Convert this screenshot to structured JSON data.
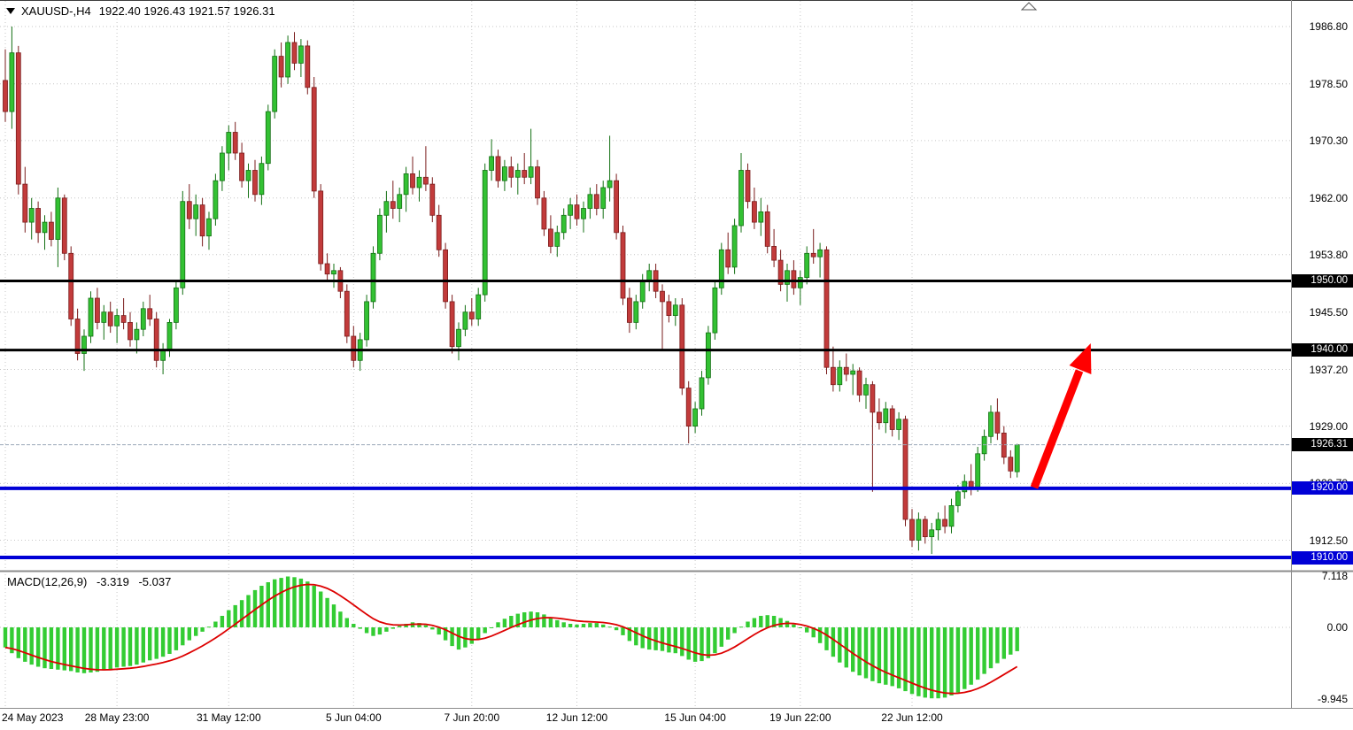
{
  "window": {
    "title_symbol": "XAUUSD-,H4",
    "title_ohlc": "1922.40 1926.43 1921.57 1926.31"
  },
  "colors": {
    "bull": "#33C133",
    "bull_stroke": "#137013",
    "bear": "#C23B3B",
    "bear_stroke": "#7A1C1C",
    "macd_bar": "#33CC33",
    "signal": "#DD0000",
    "level_black": "#000000",
    "level_blue": "#0000D6",
    "grid": "#C6C6C6",
    "bid_line": "#9AA7B8",
    "arrow": "#FF0000"
  },
  "price_axis": {
    "ticks": [
      {
        "value": 1986.8,
        "label": "1986.80"
      },
      {
        "value": 1978.5,
        "label": "1978.50"
      },
      {
        "value": 1970.3,
        "label": "1970.30"
      },
      {
        "value": 1962.0,
        "label": "1962.00"
      },
      {
        "value": 1953.8,
        "label": "1953.80"
      },
      {
        "value": 1945.5,
        "label": "1945.50"
      },
      {
        "value": 1937.2,
        "label": "1937.20"
      },
      {
        "value": 1929.0,
        "label": "1929.00"
      },
      {
        "value": 1920.7,
        "label": "1920.70"
      },
      {
        "value": 1912.5,
        "label": "1912.50"
      }
    ]
  },
  "x_axis": {
    "ticks": [
      {
        "i": 0,
        "label": "24 May 2023"
      },
      {
        "i": 17,
        "label": "28 May 23:00"
      },
      {
        "i": 34,
        "label": "31 May 12:00"
      },
      {
        "i": 53,
        "label": "5 Jun 04:00"
      },
      {
        "i": 71,
        "label": "7 Jun 20:00"
      },
      {
        "i": 87,
        "label": "12 Jun 12:00"
      },
      {
        "i": 105,
        "label": "15 Jun 04:00"
      },
      {
        "i": 121,
        "label": "19 Jun 22:00"
      },
      {
        "i": 138,
        "label": "22 Jun 12:00"
      }
    ]
  },
  "levels": [
    {
      "value": 1950.0,
      "label": "1950.00",
      "color": "black"
    },
    {
      "value": 1940.0,
      "label": "1940.00",
      "color": "black"
    },
    {
      "value": 1920.0,
      "label": "1920.00",
      "color": "blue"
    },
    {
      "value": 1910.0,
      "label": "1910.00",
      "color": "blue"
    }
  ],
  "bid": {
    "value": 1926.31,
    "label": "1926.31"
  },
  "macd": {
    "label": "MACD(12,26,9)",
    "main": "-3.319",
    "signal": "-5.037",
    "axis": [
      {
        "value": 7.118,
        "label": "7.118"
      },
      {
        "value": 0.0,
        "label": "0.00"
      },
      {
        "value": -9.945,
        "label": "-9.945"
      }
    ]
  },
  "chart_data": {
    "type": "candlestick",
    "symbol": "XAUUSD",
    "timeframe": "H4",
    "title": "XAUUSD-,H4",
    "ylim": [
      1908.0,
      1990.6
    ],
    "last_candle": {
      "open": 1922.4,
      "high": 1926.43,
      "low": 1921.57,
      "close": 1926.31
    },
    "horizontal_levels": [
      1950.0,
      1940.0,
      1920.0,
      1910.0
    ],
    "candles": [
      [
        1979.0,
        1983.5,
        1973.0,
        1974.5
      ],
      [
        1974.5,
        1986.8,
        1972.0,
        1983.0
      ],
      [
        1983.0,
        1984.0,
        1962.5,
        1964.0
      ],
      [
        1964.0,
        1966.5,
        1957.0,
        1958.5
      ],
      [
        1958.5,
        1962.0,
        1956.0,
        1960.5
      ],
      [
        1960.5,
        1961.5,
        1955.5,
        1957.0
      ],
      [
        1957.0,
        1959.5,
        1954.5,
        1958.5
      ],
      [
        1958.5,
        1960.0,
        1955.0,
        1956.0
      ],
      [
        1956.0,
        1963.5,
        1952.0,
        1962.0
      ],
      [
        1962.0,
        1962.5,
        1953.0,
        1954.0
      ],
      [
        1954.0,
        1955.0,
        1943.5,
        1944.5
      ],
      [
        1944.5,
        1946.0,
        1938.5,
        1939.5
      ],
      [
        1939.5,
        1943.0,
        1937.0,
        1942.0
      ],
      [
        1942.0,
        1948.5,
        1941.0,
        1947.5
      ],
      [
        1947.5,
        1949.0,
        1943.0,
        1944.0
      ],
      [
        1944.0,
        1946.5,
        1941.5,
        1945.5
      ],
      [
        1945.5,
        1947.0,
        1942.5,
        1943.5
      ],
      [
        1943.5,
        1946.0,
        1941.0,
        1945.0
      ],
      [
        1945.0,
        1947.5,
        1943.0,
        1944.0
      ],
      [
        1944.0,
        1945.5,
        1940.5,
        1941.5
      ],
      [
        1941.5,
        1944.0,
        1939.5,
        1943.0
      ],
      [
        1943.0,
        1947.0,
        1942.0,
        1946.0
      ],
      [
        1946.0,
        1948.0,
        1943.5,
        1944.5
      ],
      [
        1944.5,
        1945.5,
        1937.5,
        1938.5
      ],
      [
        1938.5,
        1941.0,
        1936.5,
        1940.0
      ],
      [
        1940.0,
        1944.5,
        1939.0,
        1944.0
      ],
      [
        1944.0,
        1950.0,
        1943.0,
        1949.0
      ],
      [
        1949.0,
        1963.0,
        1948.0,
        1961.5
      ],
      [
        1961.5,
        1964.0,
        1957.5,
        1959.0
      ],
      [
        1959.0,
        1962.5,
        1956.5,
        1961.0
      ],
      [
        1961.0,
        1962.0,
        1955.0,
        1956.5
      ],
      [
        1956.5,
        1960.0,
        1954.5,
        1959.0
      ],
      [
        1959.0,
        1965.5,
        1958.0,
        1964.5
      ],
      [
        1964.5,
        1969.5,
        1963.0,
        1968.5
      ],
      [
        1968.5,
        1972.5,
        1966.0,
        1971.5
      ],
      [
        1971.5,
        1973.0,
        1967.5,
        1968.5
      ],
      [
        1968.5,
        1970.0,
        1963.5,
        1964.5
      ],
      [
        1964.5,
        1967.0,
        1962.0,
        1966.0
      ],
      [
        1966.0,
        1967.5,
        1961.5,
        1962.5
      ],
      [
        1962.5,
        1968.0,
        1961.0,
        1967.0
      ],
      [
        1967.0,
        1975.5,
        1966.0,
        1974.5
      ],
      [
        1974.5,
        1983.5,
        1973.5,
        1982.5
      ],
      [
        1982.5,
        1984.5,
        1978.0,
        1979.5
      ],
      [
        1979.5,
        1985.5,
        1978.5,
        1984.5
      ],
      [
        1984.5,
        1986.0,
        1980.5,
        1981.5
      ],
      [
        1981.5,
        1985.0,
        1979.5,
        1984.0
      ],
      [
        1984.0,
        1984.8,
        1977.0,
        1978.0
      ],
      [
        1978.0,
        1979.5,
        1962.0,
        1963.0
      ],
      [
        1963.0,
        1964.0,
        1951.5,
        1952.5
      ],
      [
        1952.5,
        1954.0,
        1950.0,
        1951.0
      ],
      [
        1951.0,
        1952.5,
        1949.0,
        1951.5
      ],
      [
        1951.5,
        1952.0,
        1947.5,
        1948.5
      ],
      [
        1948.5,
        1949.5,
        1941.0,
        1942.0
      ],
      [
        1942.0,
        1943.5,
        1937.5,
        1938.5
      ],
      [
        1938.5,
        1942.5,
        1937.0,
        1941.5
      ],
      [
        1941.5,
        1948.0,
        1940.5,
        1947.0
      ],
      [
        1947.0,
        1955.0,
        1946.0,
        1954.0
      ],
      [
        1954.0,
        1960.5,
        1953.0,
        1959.5
      ],
      [
        1959.5,
        1963.0,
        1957.0,
        1961.5
      ],
      [
        1961.5,
        1964.5,
        1959.0,
        1960.5
      ],
      [
        1960.5,
        1963.5,
        1958.5,
        1962.5
      ],
      [
        1962.5,
        1966.5,
        1960.0,
        1965.5
      ],
      [
        1965.5,
        1968.0,
        1962.5,
        1963.5
      ],
      [
        1963.5,
        1966.0,
        1961.5,
        1965.0
      ],
      [
        1965.0,
        1969.5,
        1963.0,
        1964.0
      ],
      [
        1964.0,
        1965.0,
        1958.5,
        1959.5
      ],
      [
        1959.5,
        1961.0,
        1953.5,
        1954.5
      ],
      [
        1954.5,
        1955.5,
        1946.0,
        1947.0
      ],
      [
        1947.0,
        1948.0,
        1939.5,
        1940.5
      ],
      [
        1940.5,
        1944.0,
        1938.5,
        1943.0
      ],
      [
        1943.0,
        1946.5,
        1942.0,
        1945.5
      ],
      [
        1945.5,
        1947.5,
        1943.5,
        1944.5
      ],
      [
        1944.5,
        1949.0,
        1943.5,
        1948.0
      ],
      [
        1948.0,
        1967.0,
        1947.0,
        1966.0
      ],
      [
        1966.0,
        1970.5,
        1964.5,
        1968.0
      ],
      [
        1968.0,
        1969.0,
        1963.5,
        1964.5
      ],
      [
        1964.5,
        1967.5,
        1963.0,
        1966.5
      ],
      [
        1966.5,
        1968.0,
        1963.5,
        1965.0
      ],
      [
        1965.0,
        1967.0,
        1962.5,
        1966.0
      ],
      [
        1966.0,
        1968.5,
        1964.0,
        1965.0
      ],
      [
        1965.0,
        1972.0,
        1964.0,
        1966.5
      ],
      [
        1966.5,
        1967.5,
        1961.0,
        1962.0
      ],
      [
        1962.0,
        1963.0,
        1956.5,
        1957.5
      ],
      [
        1957.5,
        1959.5,
        1954.0,
        1955.0
      ],
      [
        1955.0,
        1958.0,
        1953.5,
        1957.0
      ],
      [
        1957.0,
        1960.5,
        1956.0,
        1959.5
      ],
      [
        1959.5,
        1962.0,
        1957.5,
        1961.0
      ],
      [
        1961.0,
        1962.5,
        1958.0,
        1959.0
      ],
      [
        1959.0,
        1961.5,
        1957.0,
        1960.5
      ],
      [
        1960.5,
        1963.5,
        1959.0,
        1962.5
      ],
      [
        1962.5,
        1964.0,
        1959.5,
        1960.5
      ],
      [
        1960.5,
        1964.5,
        1959.0,
        1963.5
      ],
      [
        1963.5,
        1971.0,
        1961.5,
        1964.5
      ],
      [
        1964.5,
        1965.5,
        1956.0,
        1957.0
      ],
      [
        1957.0,
        1958.0,
        1946.5,
        1947.5
      ],
      [
        1947.5,
        1949.0,
        1942.5,
        1944.0
      ],
      [
        1944.0,
        1948.0,
        1943.0,
        1947.0
      ],
      [
        1947.0,
        1951.0,
        1946.0,
        1950.0
      ],
      [
        1950.0,
        1952.5,
        1948.5,
        1951.5
      ],
      [
        1951.5,
        1952.5,
        1947.5,
        1948.5
      ],
      [
        1948.5,
        1949.5,
        1940.0,
        1947.0
      ],
      [
        1947.0,
        1948.0,
        1944.0,
        1945.0
      ],
      [
        1945.0,
        1947.5,
        1943.5,
        1946.5
      ],
      [
        1946.5,
        1947.5,
        1933.5,
        1934.5
      ],
      [
        1934.5,
        1935.5,
        1926.5,
        1929.0
      ],
      [
        1929.0,
        1932.5,
        1928.0,
        1931.5
      ],
      [
        1931.5,
        1937.0,
        1930.5,
        1936.0
      ],
      [
        1936.0,
        1943.5,
        1935.0,
        1942.5
      ],
      [
        1942.5,
        1950.0,
        1941.5,
        1949.0
      ],
      [
        1949.0,
        1955.5,
        1948.0,
        1954.5
      ],
      [
        1954.5,
        1957.0,
        1951.0,
        1952.0
      ],
      [
        1952.0,
        1959.0,
        1951.0,
        1958.0
      ],
      [
        1958.0,
        1968.5,
        1957.0,
        1966.0
      ],
      [
        1966.0,
        1967.0,
        1960.5,
        1961.5
      ],
      [
        1961.5,
        1963.5,
        1957.5,
        1958.5
      ],
      [
        1958.5,
        1962.0,
        1956.5,
        1960.0
      ],
      [
        1960.0,
        1961.0,
        1954.0,
        1955.0
      ],
      [
        1955.0,
        1957.5,
        1952.0,
        1953.0
      ],
      [
        1953.0,
        1954.5,
        1948.5,
        1949.5
      ],
      [
        1949.5,
        1952.5,
        1947.0,
        1951.5
      ],
      [
        1951.5,
        1953.0,
        1948.0,
        1949.0
      ],
      [
        1949.0,
        1951.5,
        1946.5,
        1950.5
      ],
      [
        1950.5,
        1955.0,
        1949.5,
        1954.0
      ],
      [
        1954.0,
        1957.5,
        1952.5,
        1953.5
      ],
      [
        1953.5,
        1955.5,
        1950.5,
        1954.5
      ],
      [
        1954.5,
        1955.0,
        1936.5,
        1937.5
      ],
      [
        1937.5,
        1940.5,
        1934.0,
        1935.0
      ],
      [
        1935.0,
        1938.5,
        1934.0,
        1937.5
      ],
      [
        1937.5,
        1939.5,
        1935.5,
        1936.5
      ],
      [
        1936.5,
        1938.0,
        1933.5,
        1937.0
      ],
      [
        1937.0,
        1937.5,
        1932.5,
        1933.5
      ],
      [
        1933.5,
        1936.0,
        1931.5,
        1935.0
      ],
      [
        1935.0,
        1935.5,
        1919.5,
        1931.0
      ],
      [
        1931.0,
        1933.0,
        1928.5,
        1929.5
      ],
      [
        1929.5,
        1932.5,
        1928.0,
        1931.5
      ],
      [
        1931.5,
        1932.0,
        1927.5,
        1928.5
      ],
      [
        1928.5,
        1931.0,
        1927.0,
        1930.0
      ],
      [
        1930.0,
        1930.5,
        1914.5,
        1915.5
      ],
      [
        1915.5,
        1917.0,
        1911.5,
        1912.5
      ],
      [
        1912.5,
        1916.5,
        1911.0,
        1915.5
      ],
      [
        1915.5,
        1916.0,
        1912.0,
        1913.0
      ],
      [
        1913.0,
        1915.0,
        1910.5,
        1914.0
      ],
      [
        1914.0,
        1916.5,
        1912.5,
        1915.5
      ],
      [
        1915.5,
        1917.5,
        1913.5,
        1914.5
      ],
      [
        1914.5,
        1918.5,
        1913.5,
        1917.5
      ],
      [
        1917.5,
        1920.5,
        1916.5,
        1919.5
      ],
      [
        1919.5,
        1922.0,
        1918.5,
        1921.0
      ],
      [
        1921.0,
        1923.5,
        1919.0,
        1920.0
      ],
      [
        1920.0,
        1926.0,
        1919.5,
        1925.0
      ],
      [
        1925.0,
        1928.5,
        1924.0,
        1927.5
      ],
      [
        1927.5,
        1932.0,
        1926.5,
        1931.0
      ],
      [
        1931.0,
        1933.0,
        1927.0,
        1928.0
      ],
      [
        1928.0,
        1929.0,
        1923.5,
        1924.5
      ],
      [
        1924.5,
        1925.5,
        1921.5,
        1922.5
      ],
      [
        1922.4,
        1926.43,
        1921.57,
        1926.31
      ]
    ],
    "indicator": {
      "name": "MACD(12,26,9)",
      "type": "histogram+line",
      "last_main": -3.319,
      "last_signal": -5.037,
      "ylim": [
        -9.945,
        7.118
      ],
      "histogram": [
        -2.8,
        -3.6,
        -4.3,
        -4.8,
        -5.2,
        -5.5,
        -5.7,
        -5.8,
        -5.9,
        -6.0,
        -6.1,
        -6.3,
        -6.4,
        -6.3,
        -6.2,
        -6.0,
        -5.8,
        -5.6,
        -5.5,
        -5.4,
        -5.2,
        -4.9,
        -4.6,
        -4.4,
        -4.1,
        -3.7,
        -3.2,
        -2.5,
        -1.8,
        -1.2,
        -0.6,
        0.1,
        0.8,
        1.6,
        2.4,
        3.1,
        3.8,
        4.5,
        5.2,
        5.8,
        6.3,
        6.7,
        6.9,
        7.1,
        7.0,
        6.8,
        6.4,
        5.8,
        5.0,
        4.1,
        3.2,
        2.2,
        1.3,
        0.5,
        -0.2,
        -0.8,
        -1.2,
        -1.0,
        -0.6,
        -0.2,
        0.2,
        0.5,
        0.7,
        0.6,
        0.3,
        -0.3,
        -1.0,
        -1.8,
        -2.6,
        -3.1,
        -2.8,
        -2.3,
        -1.6,
        -0.8,
        0.0,
        0.7,
        1.2,
        1.6,
        1.9,
        2.1,
        2.2,
        2.1,
        1.8,
        1.4,
        1.0,
        0.7,
        0.5,
        0.4,
        0.5,
        0.6,
        0.6,
        0.4,
        0.1,
        -0.4,
        -1.1,
        -1.9,
        -2.5,
        -2.9,
        -3.1,
        -3.2,
        -3.3,
        -3.5,
        -3.6,
        -4.0,
        -4.5,
        -4.8,
        -4.7,
        -4.3,
        -3.6,
        -2.7,
        -1.7,
        -0.8,
        0.1,
        0.8,
        1.3,
        1.6,
        1.7,
        1.6,
        1.3,
        0.9,
        0.4,
        -0.1,
        -0.7,
        -1.4,
        -2.2,
        -3.2,
        -4.1,
        -4.9,
        -5.6,
        -6.2,
        -6.7,
        -7.1,
        -7.5,
        -7.8,
        -8.0,
        -8.2,
        -8.5,
        -8.9,
        -9.3,
        -9.6,
        -9.8,
        -9.9,
        -9.9,
        -9.8,
        -9.5,
        -9.1,
        -8.6,
        -8.0,
        -7.3,
        -6.5,
        -5.7,
        -5.0,
        -4.4,
        -3.8,
        -3.319
      ]
    },
    "annotation_arrow": {
      "from_price": 1921.0,
      "to_price": 1940.5,
      "color": "#FF0000"
    }
  }
}
